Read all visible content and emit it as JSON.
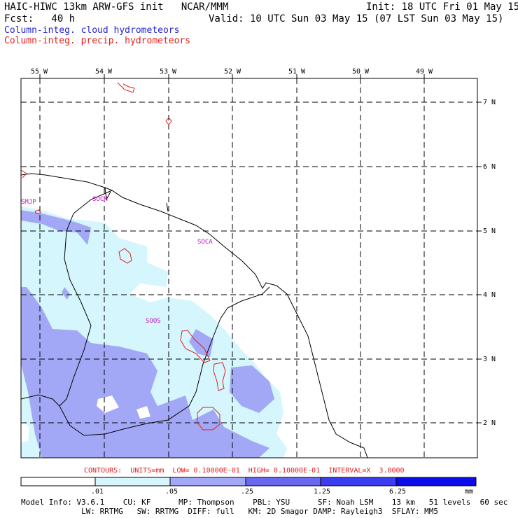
{
  "header": {
    "title_left": "HAIC-HIWC 13km ARW-GFS init   NCAR/MMM",
    "init": "Init: 18 UTC Fri 01 May 15",
    "fcst": "Fcst:   40 h",
    "valid": "Valid: 10 UTC Sun 03 May 15 (07 LST Sun 03 May 15)",
    "field1": "Column-integ. cloud hydrometeors",
    "field2": "Column-integ. precip. hydrometeors"
  },
  "axes": {
    "lon_labels": [
      "55 W",
      "54 W",
      "53 W",
      "52 W",
      "51 W",
      "50 W",
      "49 W"
    ],
    "lat_labels": [
      "7 N",
      "6 N",
      "5 N",
      "4 N",
      "3 N",
      "2 N"
    ]
  },
  "stations": [
    {
      "id": "SMJP"
    },
    {
      "id": "SOCM"
    },
    {
      "id": "SOCA"
    },
    {
      "id": "SOOS"
    }
  ],
  "contour_info": "CONTOURS:  UNITS=mm  LOW= 0.10000E-01  HIGH= 0.10000E-01  INTERVAL=X  3.0000",
  "colorbar": {
    "labels": [
      ".01",
      ".05",
      ".25",
      "1.25",
      "6.25"
    ],
    "unit": "mm",
    "colors": [
      "#ffffff",
      "#d4f6fc",
      "#a2a8f6",
      "#6868f0",
      "#3c3cf0",
      "#0c0ce8"
    ]
  },
  "footer": {
    "line1": "Model Info: V3.6.1    CU: KF      MP: Thompson    PBL: YSU      SF: Noah LSM    13 km   51 levels  60 sec",
    "line2": "             LW: RRTMG   SW: RRTMG  DIFF: full   KM: 2D Smagor DAMP: Rayleigh3  SFLAY: MM5"
  },
  "colors": {
    "cloud_light": "#d4f6fc",
    "cloud_mid": "#a2a8f6",
    "precip_contour": "#e01e1e",
    "station_label": "#c214c2"
  }
}
